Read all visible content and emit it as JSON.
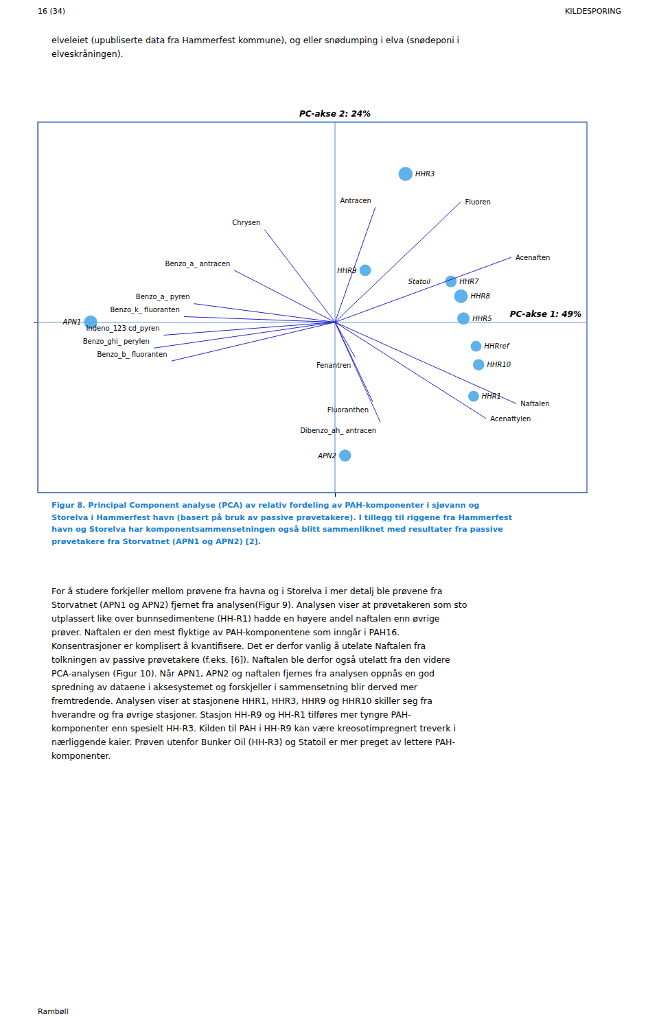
{
  "page_header_left": "16 (34)",
  "page_header_right": "KILDESPORING",
  "intro_text": "elveleiet (upubliserte data fra Hammerfest kommune), og eller snødumping i elva (snødeponi i\nelveskråningen).",
  "chart_data": {
    "type": "scatter",
    "x_label": "PC-akse 1: 49%",
    "y_label": "PC-akse 2: 24%",
    "xlim": [
      -1.18,
      1.0
    ],
    "ylim": [
      -0.92,
      1.08
    ],
    "xticks": [
      0
    ],
    "yticks": [
      0
    ],
    "tick_labels": false,
    "grid": true,
    "series": [
      {
        "type": "scatter",
        "color": "#4da8e8",
        "labels": [
          "HHR3",
          "HHR7",
          "HHR8",
          "HHR5",
          "HHRref",
          "HHR10",
          "HHR1",
          "APN1",
          "APN2",
          "HHR9",
          "Statoil"
        ],
        "x": [
          0.28,
          0.46,
          0.5,
          0.51,
          0.56,
          0.57,
          0.55,
          -0.97,
          0.04,
          0.12,
          0.28
        ],
        "values": [
          0.8,
          0.22,
          0.14,
          0.02,
          -0.13,
          -0.23,
          -0.4,
          0.0,
          -0.72,
          0.28,
          0.22
        ],
        "sizes": [
          220,
          150,
          210,
          170,
          130,
          145,
          130,
          200,
          160,
          150,
          0
        ]
      },
      {
        "type": "vector",
        "color": "#2222cc",
        "labels": [
          "Fluoren",
          "Antracen",
          "Acenaften",
          "Acenaftylen",
          "Naftalen",
          "Dibenzo_ah_ antracen",
          "Fluoranthen",
          "Fenantren",
          "Chrysen",
          "Benzo_a_ antracen",
          "Benzo_a_ pyren",
          "Benzo_k_ fluoranten",
          "Indeno_123 cd_pyren",
          "Benzo_ghi_ perylen",
          "Benzo_b_ fluoranten"
        ],
        "x": [
          0.5,
          0.16,
          0.7,
          0.6,
          0.72,
          0.18,
          0.15,
          0.08,
          -0.28,
          -0.4,
          -0.56,
          -0.6,
          -0.68,
          -0.72,
          -0.65
        ],
        "values": [
          0.65,
          0.62,
          0.35,
          -0.52,
          -0.44,
          -0.54,
          -0.43,
          -0.19,
          0.5,
          0.28,
          0.1,
          0.03,
          -0.07,
          -0.14,
          -0.21
        ]
      }
    ]
  },
  "caption_text": "Figur 8. Principal Component analyse (PCA) av relativ fordeling av PAH-komponenter i sjøvann og\nStorelva i Hammerfest havn (basert på bruk av passive prøvetakere). I tillegg til riggene fra Hammerfest\nhavn og Storelva har komponentsammensetningen også blitt sammenliknet med resultater fra passive\nprøvetakere fra Storvatnet (APN1 og APN2) [2].",
  "caption_color": "#1a7fd4",
  "body_text": "For å studere forkjeller mellom prøvene fra havna og i Storelva i mer detalj ble prøvene fra\nStorvatnet (APN1 og APN2) fjernet fra analysen(Figur 9). Analysen viser at prøvetakeren som sto\nutplassert like over bunnsedimentene (HH-R1) hadde en høyere andel naftalen enn øvrige\nprøver. Naftalen er den mest flyktige av PAH-komponentene som inngår i PAH16.\nKonsentrasjoner er komplisert å kvantifisere. Det er derfor vanlig å utelate Naftalen fra\ntolkningen av passive prøvetakere (f.eks. [6]). Naftalen ble derfor også utelatt fra den videre\nPCA-analysen (Figur 10). Når APN1, APN2 og naftalen fjernes fra analysen oppnås en god\nspredning av dataene i aksesystemet og forskjeller i sammensetning blir derved mer\nfremtredende. Analysen viser at stasjonene HHR1, HHR3, HHR9 og HHR10 skiller seg fra\nhverandre og fra øvrige stasjoner. Stasjon HH-R9 og HH-R1 tilføres mer tyngre PAH-\nkomponenter enn spesielt HH-R3. Kilden til PAH i HH-R9 kan være kreosotimpregnert treverk i\nnærliggende kaier. Prøven utenfor Bunker Oil (HH-R3) og Statoil er mer preget av lettere PAH-\nkomponenter.",
  "footer_text": "Rambøll"
}
